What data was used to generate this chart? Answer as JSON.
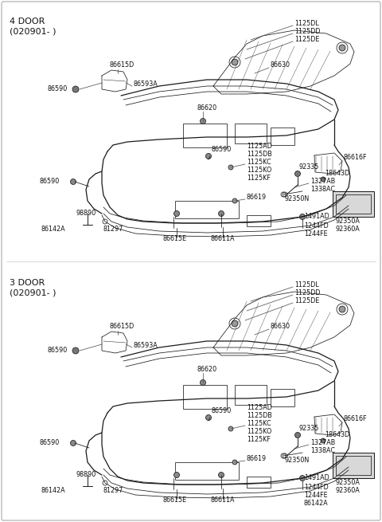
{
  "bg_color": "#ffffff",
  "line_color": "#1a1a1a",
  "fig_width": 4.8,
  "fig_height": 6.55,
  "dpi": 100,
  "section1_label": "4 DOOR",
  "section1_sub": "(020901- )",
  "section2_label": "3 DOOR",
  "section2_sub": "(020901- )",
  "ann_fs": 5.8,
  "header_fs": 8.0
}
